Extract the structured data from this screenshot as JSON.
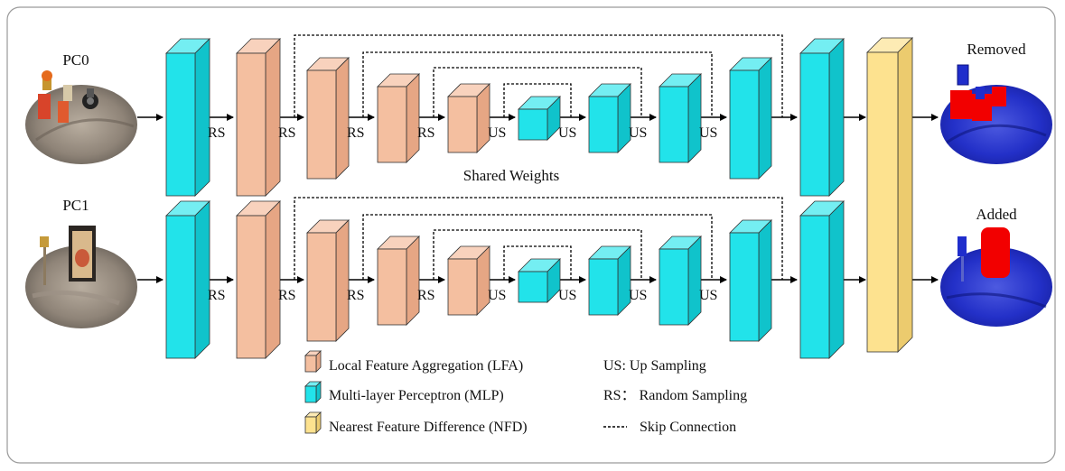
{
  "inputs": [
    {
      "label": "PC0"
    },
    {
      "label": "PC1"
    }
  ],
  "outputs": [
    {
      "label": "Removed"
    },
    {
      "label": "Added"
    }
  ],
  "ops": {
    "random_sampling": "RS",
    "up_sampling": "US"
  },
  "shared_weights_label": "Shared Weights",
  "legend": {
    "lfa": "Local Feature Aggregation (LFA)",
    "mlp": "Multi-layer Perceptron (MLP)",
    "nfd": "Nearest Feature Difference (NFD)",
    "us": "US: Up Sampling",
    "rs": "RS： Random Sampling",
    "skip": "Skip Connection"
  },
  "colors": {
    "lfa_front": "#f4bfa0",
    "lfa_top": "#f8d2bd",
    "lfa_side": "#e6a684",
    "mlp_front": "#22e3ea",
    "mlp_top": "#74eef2",
    "mlp_side": "#10c3cb",
    "nfd_front": "#fde28f",
    "nfd_top": "#fdebb4",
    "nfd_side": "#eccb6e",
    "removed_red": "#f20000",
    "added_blue": "#1f2dcc"
  }
}
